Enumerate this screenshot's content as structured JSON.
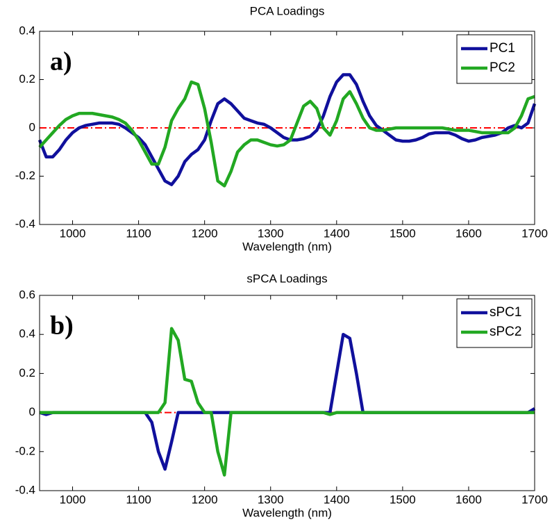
{
  "chart_data": [
    {
      "type": "line",
      "title": "PCA Loadings",
      "xlabel": "Wavelength (nm)",
      "annotation": "a)",
      "x": [
        950,
        960,
        970,
        980,
        990,
        1000,
        1010,
        1020,
        1030,
        1040,
        1050,
        1060,
        1070,
        1080,
        1090,
        1100,
        1110,
        1120,
        1130,
        1140,
        1150,
        1160,
        1170,
        1180,
        1190,
        1200,
        1210,
        1220,
        1230,
        1240,
        1250,
        1260,
        1270,
        1280,
        1290,
        1300,
        1310,
        1320,
        1330,
        1340,
        1350,
        1360,
        1370,
        1380,
        1390,
        1400,
        1410,
        1420,
        1430,
        1440,
        1450,
        1460,
        1470,
        1480,
        1490,
        1500,
        1510,
        1520,
        1530,
        1540,
        1550,
        1560,
        1570,
        1580,
        1590,
        1600,
        1610,
        1620,
        1630,
        1640,
        1650,
        1660,
        1670,
        1680,
        1690,
        1700
      ],
      "series": [
        {
          "name": "PC1",
          "color": "#10109c",
          "values": [
            -0.05,
            -0.12,
            -0.12,
            -0.09,
            -0.05,
            -0.02,
            0.0,
            0.01,
            0.015,
            0.02,
            0.02,
            0.02,
            0.015,
            0.0,
            -0.02,
            -0.04,
            -0.07,
            -0.12,
            -0.17,
            -0.22,
            -0.235,
            -0.2,
            -0.14,
            -0.11,
            -0.09,
            -0.05,
            0.03,
            0.1,
            0.12,
            0.1,
            0.07,
            0.04,
            0.03,
            0.02,
            0.015,
            0.0,
            -0.02,
            -0.04,
            -0.05,
            -0.05,
            -0.045,
            -0.035,
            -0.01,
            0.05,
            0.13,
            0.19,
            0.22,
            0.22,
            0.18,
            0.11,
            0.05,
            0.01,
            -0.01,
            -0.03,
            -0.05,
            -0.055,
            -0.055,
            -0.05,
            -0.04,
            -0.025,
            -0.02,
            -0.02,
            -0.02,
            -0.03,
            -0.045,
            -0.055,
            -0.05,
            -0.04,
            -0.035,
            -0.03,
            -0.02,
            0.0,
            0.01,
            0.0,
            0.02,
            0.1
          ]
        },
        {
          "name": "PC2",
          "color": "#22a822",
          "values": [
            -0.08,
            -0.05,
            -0.02,
            0.01,
            0.035,
            0.05,
            0.06,
            0.06,
            0.06,
            0.055,
            0.05,
            0.045,
            0.035,
            0.02,
            -0.01,
            -0.05,
            -0.1,
            -0.15,
            -0.15,
            -0.08,
            0.03,
            0.08,
            0.12,
            0.19,
            0.18,
            0.08,
            -0.06,
            -0.22,
            -0.24,
            -0.18,
            -0.1,
            -0.07,
            -0.05,
            -0.05,
            -0.06,
            -0.07,
            -0.075,
            -0.07,
            -0.05,
            0.02,
            0.09,
            0.11,
            0.08,
            0.0,
            -0.03,
            0.03,
            0.12,
            0.15,
            0.1,
            0.04,
            0.0,
            -0.01,
            -0.01,
            -0.005,
            0.0,
            0.0,
            0.0,
            0.0,
            0.0,
            0.0,
            0.0,
            0.0,
            -0.005,
            -0.01,
            -0.01,
            -0.01,
            -0.015,
            -0.02,
            -0.02,
            -0.02,
            -0.02,
            -0.02,
            0.0,
            0.05,
            0.12,
            0.13
          ]
        }
      ],
      "xlim": [
        950,
        1700
      ],
      "xticks": [
        1000,
        1100,
        1200,
        1300,
        1400,
        1500,
        1600,
        1700
      ],
      "ylim": [
        -0.4,
        0.4
      ],
      "yticks": [
        -0.4,
        -0.2,
        0,
        0.2,
        0.4
      ],
      "reference_line": {
        "y": 0,
        "color": "#ff0000"
      },
      "legend": "upper-right"
    },
    {
      "type": "line",
      "title": "sPCA Loadings",
      "xlabel": "Wavelength (nm)",
      "annotation": "b)",
      "x": [
        950,
        960,
        970,
        980,
        990,
        1000,
        1010,
        1020,
        1030,
        1040,
        1050,
        1060,
        1070,
        1080,
        1090,
        1100,
        1110,
        1120,
        1130,
        1140,
        1150,
        1160,
        1170,
        1180,
        1190,
        1200,
        1210,
        1220,
        1230,
        1240,
        1250,
        1260,
        1270,
        1280,
        1290,
        1300,
        1310,
        1320,
        1330,
        1340,
        1350,
        1360,
        1370,
        1380,
        1390,
        1400,
        1410,
        1420,
        1430,
        1440,
        1450,
        1460,
        1470,
        1480,
        1490,
        1500,
        1510,
        1520,
        1530,
        1540,
        1550,
        1560,
        1570,
        1580,
        1590,
        1600,
        1610,
        1620,
        1630,
        1640,
        1650,
        1660,
        1670,
        1680,
        1690,
        1700
      ],
      "series": [
        {
          "name": "sPC1",
          "color": "#10109c",
          "values": [
            0,
            -0.01,
            0,
            0,
            0,
            0,
            0,
            0,
            0,
            0,
            0,
            0,
            0,
            0,
            0,
            0,
            0,
            -0.05,
            -0.2,
            -0.29,
            -0.15,
            0,
            0,
            0,
            0,
            0,
            0,
            0,
            0,
            0,
            0,
            0,
            0,
            0,
            0,
            0,
            0,
            0,
            0,
            0,
            0,
            0,
            0,
            0,
            0,
            0.2,
            0.4,
            0.38,
            0.2,
            0,
            0,
            0,
            0,
            0,
            0,
            0,
            0,
            0,
            0,
            0,
            0,
            0,
            0,
            0,
            0,
            0,
            0,
            0,
            0,
            0,
            0,
            0,
            0,
            0,
            0,
            0.02
          ]
        },
        {
          "name": "sPC2",
          "color": "#22a822",
          "values": [
            0,
            0,
            0,
            0,
            0,
            0,
            0,
            0,
            0,
            0,
            0,
            0,
            0,
            0,
            0,
            0,
            0,
            0,
            0,
            0.05,
            0.43,
            0.37,
            0.17,
            0.16,
            0.05,
            0,
            0,
            -0.2,
            -0.32,
            0,
            0,
            0,
            0,
            0,
            0,
            0,
            0,
            0,
            0,
            0,
            0,
            0,
            0,
            0,
            -0.01,
            0,
            0,
            0,
            0,
            0,
            0,
            0,
            0,
            0,
            0,
            0,
            0,
            0,
            0,
            0,
            0,
            0,
            0,
            0,
            0,
            0,
            0,
            0,
            0,
            0,
            0,
            0,
            0,
            0,
            0,
            0
          ]
        }
      ],
      "xlim": [
        950,
        1700
      ],
      "xticks": [
        1000,
        1100,
        1200,
        1300,
        1400,
        1500,
        1600,
        1700
      ],
      "ylim": [
        -0.4,
        0.6
      ],
      "yticks": [
        -0.4,
        -0.2,
        0,
        0.2,
        0.4,
        0.6
      ],
      "reference_line": {
        "y": 0,
        "color": "#ff0000"
      },
      "legend": "upper-right"
    }
  ]
}
